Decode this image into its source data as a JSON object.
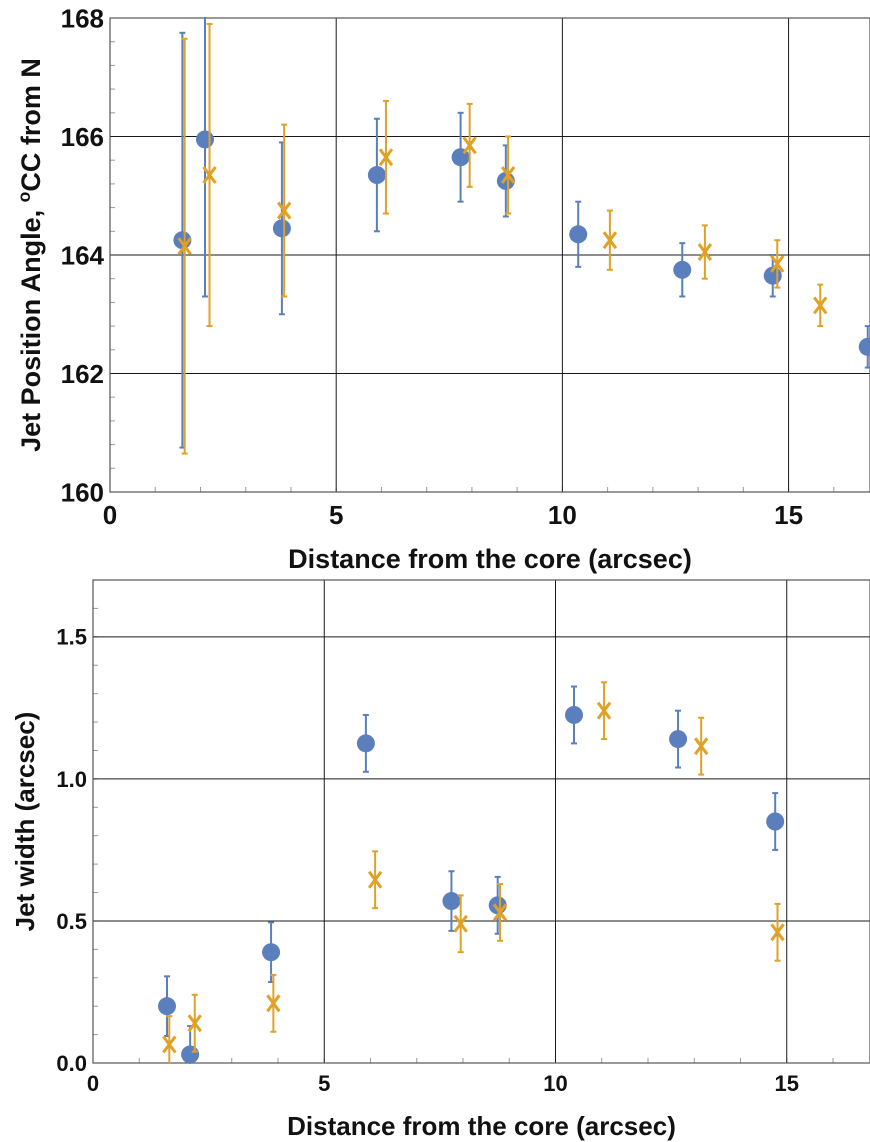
{
  "chart_data": [
    {
      "type": "scatter",
      "title": "",
      "xlabel": "Distance from the core (arcsec)",
      "ylabel": "Jet Position Angle, ",
      "ylabel_sup": "o",
      "ylabel_tail": "CC from N",
      "xlim": [
        0,
        16.8
      ],
      "ylim": [
        160,
        168
      ],
      "xticks": [
        0,
        5,
        10,
        15
      ],
      "yticks": [
        160,
        162,
        164,
        166,
        168
      ],
      "grid": true,
      "colors": {
        "series1": "#5b7fbd",
        "series2": "#e0a125"
      },
      "series": [
        {
          "marker": "circle",
          "points": [
            {
              "x": 1.6,
              "y": 164.25,
              "err": 3.5
            },
            {
              "x": 2.1,
              "y": 165.95,
              "err": 2.65
            },
            {
              "x": 3.8,
              "y": 164.45,
              "err": 1.45
            },
            {
              "x": 5.9,
              "y": 165.35,
              "err": 0.95
            },
            {
              "x": 7.75,
              "y": 165.65,
              "err": 0.75
            },
            {
              "x": 8.75,
              "y": 165.25,
              "err": 0.6
            },
            {
              "x": 10.35,
              "y": 164.35,
              "err": 0.55
            },
            {
              "x": 12.65,
              "y": 163.75,
              "err": 0.45
            },
            {
              "x": 14.65,
              "y": 163.65,
              "err": 0.35
            },
            {
              "x": 16.75,
              "y": 162.45,
              "err": 0.35
            }
          ]
        },
        {
          "marker": "x",
          "points": [
            {
              "x": 1.65,
              "y": 164.15,
              "err": 3.5
            },
            {
              "x": 2.2,
              "y": 165.35,
              "err": 2.55
            },
            {
              "x": 3.85,
              "y": 164.75,
              "err": 1.45
            },
            {
              "x": 6.1,
              "y": 165.65,
              "err": 0.95
            },
            {
              "x": 7.95,
              "y": 165.85,
              "err": 0.7
            },
            {
              "x": 8.8,
              "y": 165.35,
              "err": 0.65
            },
            {
              "x": 11.05,
              "y": 164.25,
              "err": 0.5
            },
            {
              "x": 13.15,
              "y": 164.05,
              "err": 0.45
            },
            {
              "x": 14.75,
              "y": 163.85,
              "err": 0.4
            },
            {
              "x": 15.7,
              "y": 163.15,
              "err": 0.35
            }
          ]
        }
      ]
    },
    {
      "type": "scatter",
      "title": "",
      "xlabel": "Distance from the core (arcsec)",
      "ylabel": "Jet width (arcsec)",
      "xlim": [
        0,
        16.8
      ],
      "ylim": [
        0,
        1.7
      ],
      "xticks": [
        0,
        5,
        10,
        15
      ],
      "yticks": [
        0.0,
        0.5,
        1.0,
        1.5
      ],
      "ytick_labels": [
        "0.0",
        "0.5",
        "1.0",
        "1.5"
      ],
      "grid": true,
      "colors": {
        "series1": "#5b7fbd",
        "series2": "#e0a125"
      },
      "series": [
        {
          "marker": "circle",
          "points": [
            {
              "x": 1.6,
              "y": 0.2,
              "err": 0.105
            },
            {
              "x": 2.1,
              "y": 0.03,
              "err": 0.1
            },
            {
              "x": 3.85,
              "y": 0.39,
              "err": 0.105
            },
            {
              "x": 5.9,
              "y": 1.125,
              "err": 0.1
            },
            {
              "x": 7.75,
              "y": 0.57,
              "err": 0.105
            },
            {
              "x": 8.75,
              "y": 0.555,
              "err": 0.1
            },
            {
              "x": 10.4,
              "y": 1.225,
              "err": 0.1
            },
            {
              "x": 12.65,
              "y": 1.14,
              "err": 0.1
            },
            {
              "x": 14.75,
              "y": 0.85,
              "err": 0.1
            }
          ]
        },
        {
          "marker": "x",
          "points": [
            {
              "x": 1.65,
              "y": 0.065,
              "err": 0.1
            },
            {
              "x": 2.2,
              "y": 0.14,
              "err": 0.1
            },
            {
              "x": 3.9,
              "y": 0.21,
              "err": 0.1
            },
            {
              "x": 6.1,
              "y": 0.645,
              "err": 0.1
            },
            {
              "x": 7.95,
              "y": 0.49,
              "err": 0.1
            },
            {
              "x": 8.8,
              "y": 0.53,
              "err": 0.1
            },
            {
              "x": 11.05,
              "y": 1.24,
              "err": 0.1
            },
            {
              "x": 13.15,
              "y": 1.115,
              "err": 0.1
            },
            {
              "x": 14.8,
              "y": 0.46,
              "err": 0.1
            }
          ]
        }
      ]
    }
  ]
}
